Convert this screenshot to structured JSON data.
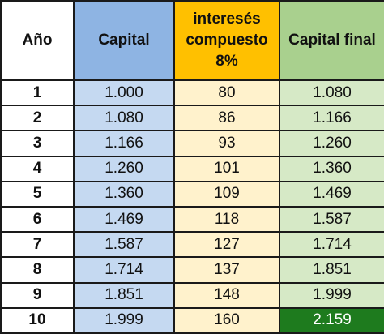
{
  "headers": {
    "year": "Año",
    "capital": "Capital",
    "interest_line1": "interesés",
    "interest_line2": "compuesto",
    "interest_line3": "8%",
    "final": "Capital final"
  },
  "rows": [
    {
      "year": "1",
      "capital": "1.000",
      "interest": "80",
      "final": "1.080"
    },
    {
      "year": "2",
      "capital": "1.080",
      "interest": "86",
      "final": "1.166"
    },
    {
      "year": "3",
      "capital": "1.166",
      "interest": "93",
      "final": "1.260"
    },
    {
      "year": "4",
      "capital": "1.260",
      "interest": "101",
      "final": "1.360"
    },
    {
      "year": "5",
      "capital": "1.360",
      "interest": "109",
      "final": "1.469"
    },
    {
      "year": "6",
      "capital": "1.469",
      "interest": "118",
      "final": "1.587"
    },
    {
      "year": "7",
      "capital": "1.587",
      "interest": "127",
      "final": "1.714"
    },
    {
      "year": "8",
      "capital": "1.714",
      "interest": "137",
      "final": "1.851"
    },
    {
      "year": "9",
      "capital": "1.851",
      "interest": "148",
      "final": "1.999"
    },
    {
      "year": "10",
      "capital": "1.999",
      "interest": "160",
      "final": "2.159"
    }
  ],
  "colors": {
    "capital_header": "#8eb4e3",
    "capital_cells": "#c5d9f1",
    "interest_header": "#ffc000",
    "interest_cells": "#fff2cc",
    "final_header": "#a9d08e",
    "final_cells": "#d6e9c6",
    "final_highlight": "#1e7b1e"
  }
}
